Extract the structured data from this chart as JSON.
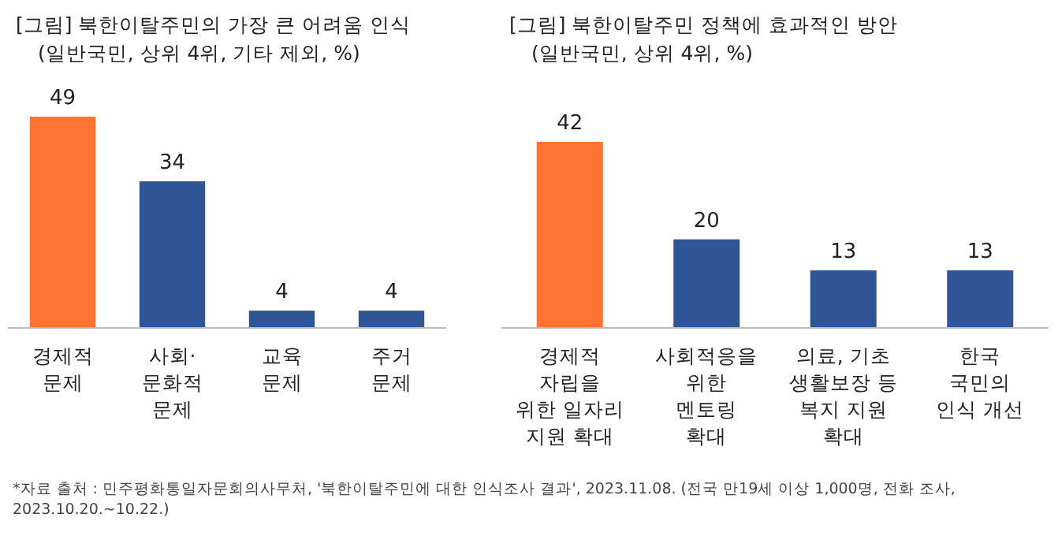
{
  "chart_data": [
    {
      "type": "bar",
      "title": "[그림] 북한이탈주민의 가장 큰 어려움 인식",
      "subtitle": "(일반국민, 상위 4위, 기타 제외, %)",
      "categories": [
        "경제적\n문제",
        "사회·\n문화적\n문제",
        "교육\n문제",
        "주거\n문제"
      ],
      "values": [
        49,
        34,
        4,
        4
      ],
      "colors": [
        "#ff7433",
        "#2f5597",
        "#2f5597",
        "#2f5597"
      ],
      "data_labels": true
    },
    {
      "type": "bar",
      "title": "[그림] 북한이탈주민 정책에 효과적인 방안",
      "subtitle": "(일반국민, 상위 4위, %)",
      "categories": [
        "경제적\n자립을\n위한 일자리\n지원 확대",
        "사회적응을\n위한\n멘토링\n확대",
        "의료, 기초\n생활보장 등\n복지 지원\n확대",
        "한국\n국민의\n인식 개선"
      ],
      "values": [
        42,
        20,
        13,
        13
      ],
      "colors": [
        "#ff7433",
        "#2f5597",
        "#2f5597",
        "#2f5597"
      ],
      "data_labels": true,
      "annotations": [
        "*자료 출처 : 민주평화통일자문회의사무처, '북한이탈주민에 대한 인식조사 결과', 2023.11.08. (전국 만19세 이상 1,000명, 전화 조사, 2023.10.20.~10.22.)"
      ]
    }
  ]
}
